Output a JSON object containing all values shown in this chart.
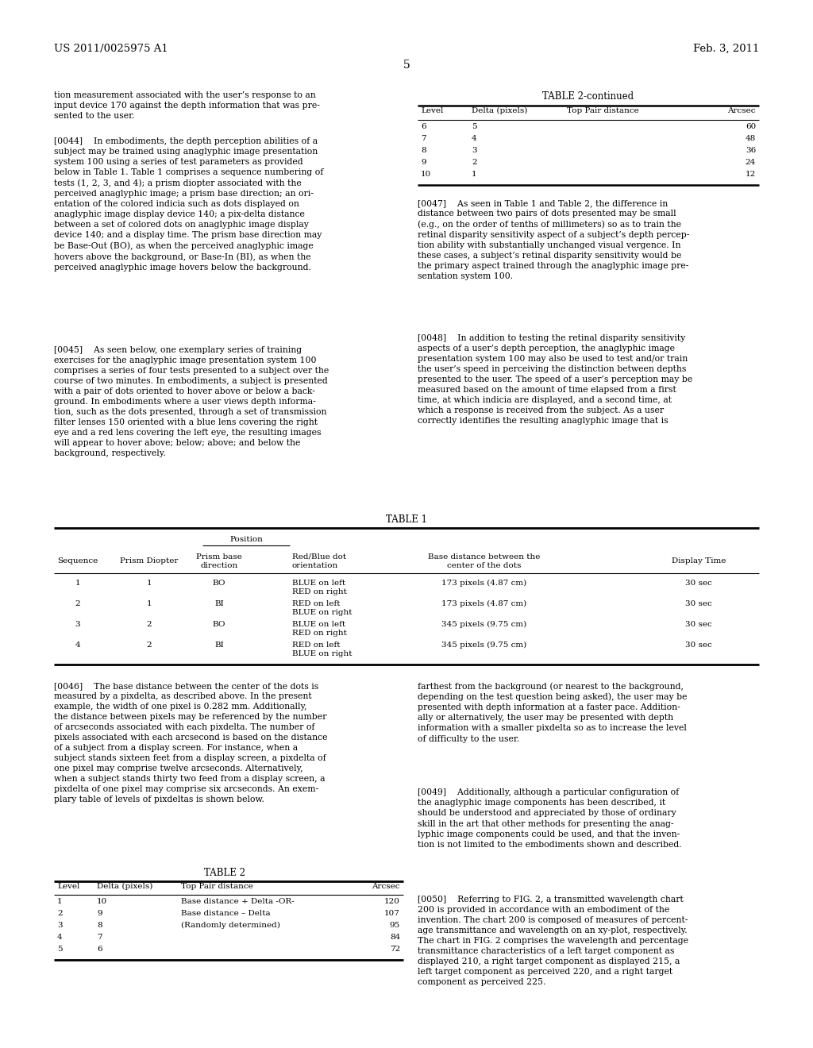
{
  "page_number": "5",
  "header_left": "US 2011/0025975 A1",
  "header_right": "Feb. 3, 2011",
  "background_color": "#ffffff",
  "para_intro": "tion measurement associated with the user’s response to an\ninput device 170 against the depth information that was pre-\nsented to the user.",
  "para_0044": "[0044]    In embodiments, the depth perception abilities of a\nsubject may be trained using anaglyphic image presentation\nsystem 100 using a series of test parameters as provided\nbelow in Table 1. Table 1 comprises a sequence numbering of\ntests (1, 2, 3, and 4); a prism diopter associated with the\nperceived anaglyphic image; a prism base direction; an ori-\nentation of the colored indicia such as dots displayed on\nanaglyphic image display device 140; a pix-delta distance\nbetween a set of colored dots on anaglyphic image display\ndevice 140; and a display time. The prism base direction may\nbe Base-Out (BO), as when the perceived anaglyphic image\nhovers above the background, or Base-In (BI), as when the\nperceived anaglyphic image hovers below the background.",
  "para_0045": "[0045]    As seen below, one exemplary series of training\nexercises for the anaglyphic image presentation system 100\ncomprises a series of four tests presented to a subject over the\ncourse of two minutes. In embodiments, a subject is presented\nwith a pair of dots oriented to hover above or below a back-\nground. In embodiments where a user views depth informa-\ntion, such as the dots presented, through a set of transmission\nfilter lenses 150 oriented with a blue lens covering the right\neye and a red lens covering the left eye, the resulting images\nwill appear to hover above; below; above; and below the\nbackground, respectively.",
  "para_0047": "[0047]    As seen in Table 1 and Table 2, the difference in\ndistance between two pairs of dots presented may be small\n(e.g., on the order of tenths of millimeters) so as to train the\nretinal disparity sensitivity aspect of a subject’s depth percep-\ntion ability with substantially unchanged visual vergence. In\nthese cases, a subject’s retinal disparity sensitivity would be\nthe primary aspect trained through the anaglyphic image pre-\nsentation system 100.",
  "para_0048": "[0048]    In addition to testing the retinal disparity sensitivity\naspects of a user’s depth perception, the anaglyphic image\npresentation system 100 may also be used to test and/or train\nthe user’s speed in perceiving the distinction between depths\npresented to the user. The speed of a user’s perception may be\nmeasured based on the amount of time elapsed from a first\ntime, at which indicia are displayed, and a second time, at\nwhich a response is received from the subject. As a user\ncorrectly identifies the resulting anaglyphic image that is",
  "table2c_title": "TABLE 2-continued",
  "table2c_headers": [
    "Level",
    "Delta (pixels)",
    "Top Pair distance",
    "Arcsec"
  ],
  "table2c_rows": [
    [
      "6",
      "5",
      "",
      "60"
    ],
    [
      "7",
      "4",
      "",
      "48"
    ],
    [
      "8",
      "3",
      "",
      "36"
    ],
    [
      "9",
      "2",
      "",
      "24"
    ],
    [
      "10",
      "1",
      "",
      "12"
    ]
  ],
  "table1_title": "TABLE 1",
  "table1_pos_label": "Position",
  "table1_col_headers_line1": [
    "",
    "",
    "Prism base",
    "Red/Blue dot",
    "Base distance between the",
    ""
  ],
  "table1_col_headers_line2": [
    "Sequence",
    "Prism Diopter",
    "direction",
    "orientation",
    "center of the dots",
    "Display Time"
  ],
  "table1_rows": [
    [
      "1",
      "1",
      "BO",
      "BLUE on left\nRED on right",
      "173 pixels (4.87 cm)",
      "30 sec"
    ],
    [
      "2",
      "1",
      "BI",
      "RED on left\nBLUE on right",
      "173 pixels (4.87 cm)",
      "30 sec"
    ],
    [
      "3",
      "2",
      "BO",
      "BLUE on left\nRED on right",
      "345 pixels (9.75 cm)",
      "30 sec"
    ],
    [
      "4",
      "2",
      "BI",
      "RED on left\nBLUE on right",
      "345 pixels (9.75 cm)",
      "30 sec"
    ]
  ],
  "para_0046": "[0046]    The base distance between the center of the dots is\nmeasured by a pixdelta, as described above. In the present\nexample, the width of one pixel is 0.282 mm. Additionally,\nthe distance between pixels may be referenced by the number\nof arcseconds associated with each pixdelta. The number of\npixels associated with each arcsecond is based on the distance\nof a subject from a display screen. For instance, when a\nsubject stands sixteen feet from a display screen, a pixdelta of\none pixel may comprise twelve arcseconds. Alternatively,\nwhen a subject stands thirty two feed from a display screen, a\npixdelta of one pixel may comprise six arcseconds. An exem-\nplary table of levels of pixdeltas is shown below.",
  "table2_title": "TABLE 2",
  "table2_headers": [
    "Level",
    "Delta (pixels)",
    "Top Pair distance",
    "Arcsec"
  ],
  "table2_rows": [
    [
      "1",
      "10",
      "Base distance + Delta -OR-",
      "120"
    ],
    [
      "2",
      "9",
      "Base distance – Delta",
      "107"
    ],
    [
      "3",
      "8",
      "(Randomly determined)",
      "95"
    ],
    [
      "4",
      "7",
      "",
      "84"
    ],
    [
      "5",
      "6",
      "",
      "72"
    ]
  ],
  "para_right_bot1": "farthest from the background (or nearest to the background,\ndepending on the test question being asked), the user may be\npresented with depth information at a faster pace. Addition-\nally or alternatively, the user may be presented with depth\ninformation with a smaller pixdelta so as to increase the level\nof difficulty to the user.",
  "para_0049": "[0049]    Additionally, although a particular configuration of\nthe anaglyphic image components has been described, it\nshould be understood and appreciated by those of ordinary\nskill in the art that other methods for presenting the anag-\nlyphic image components could be used, and that the inven-\ntion is not limited to the embodiments shown and described.",
  "para_0050": "[0050]    Referring to FIG. 2, a transmitted wavelength chart\n200 is provided in accordance with an embodiment of the\ninvention. The chart 200 is composed of measures of percent-\nage transmittance and wavelength on an xy-plot, respectively.\nThe chart in FIG. 2 comprises the wavelength and percentage\ntransmittance characteristics of a left target component as\ndisplayed 210, a right target component as displayed 215, a\nleft target component as perceived 220, and a right target\ncomponent as perceived 225."
}
